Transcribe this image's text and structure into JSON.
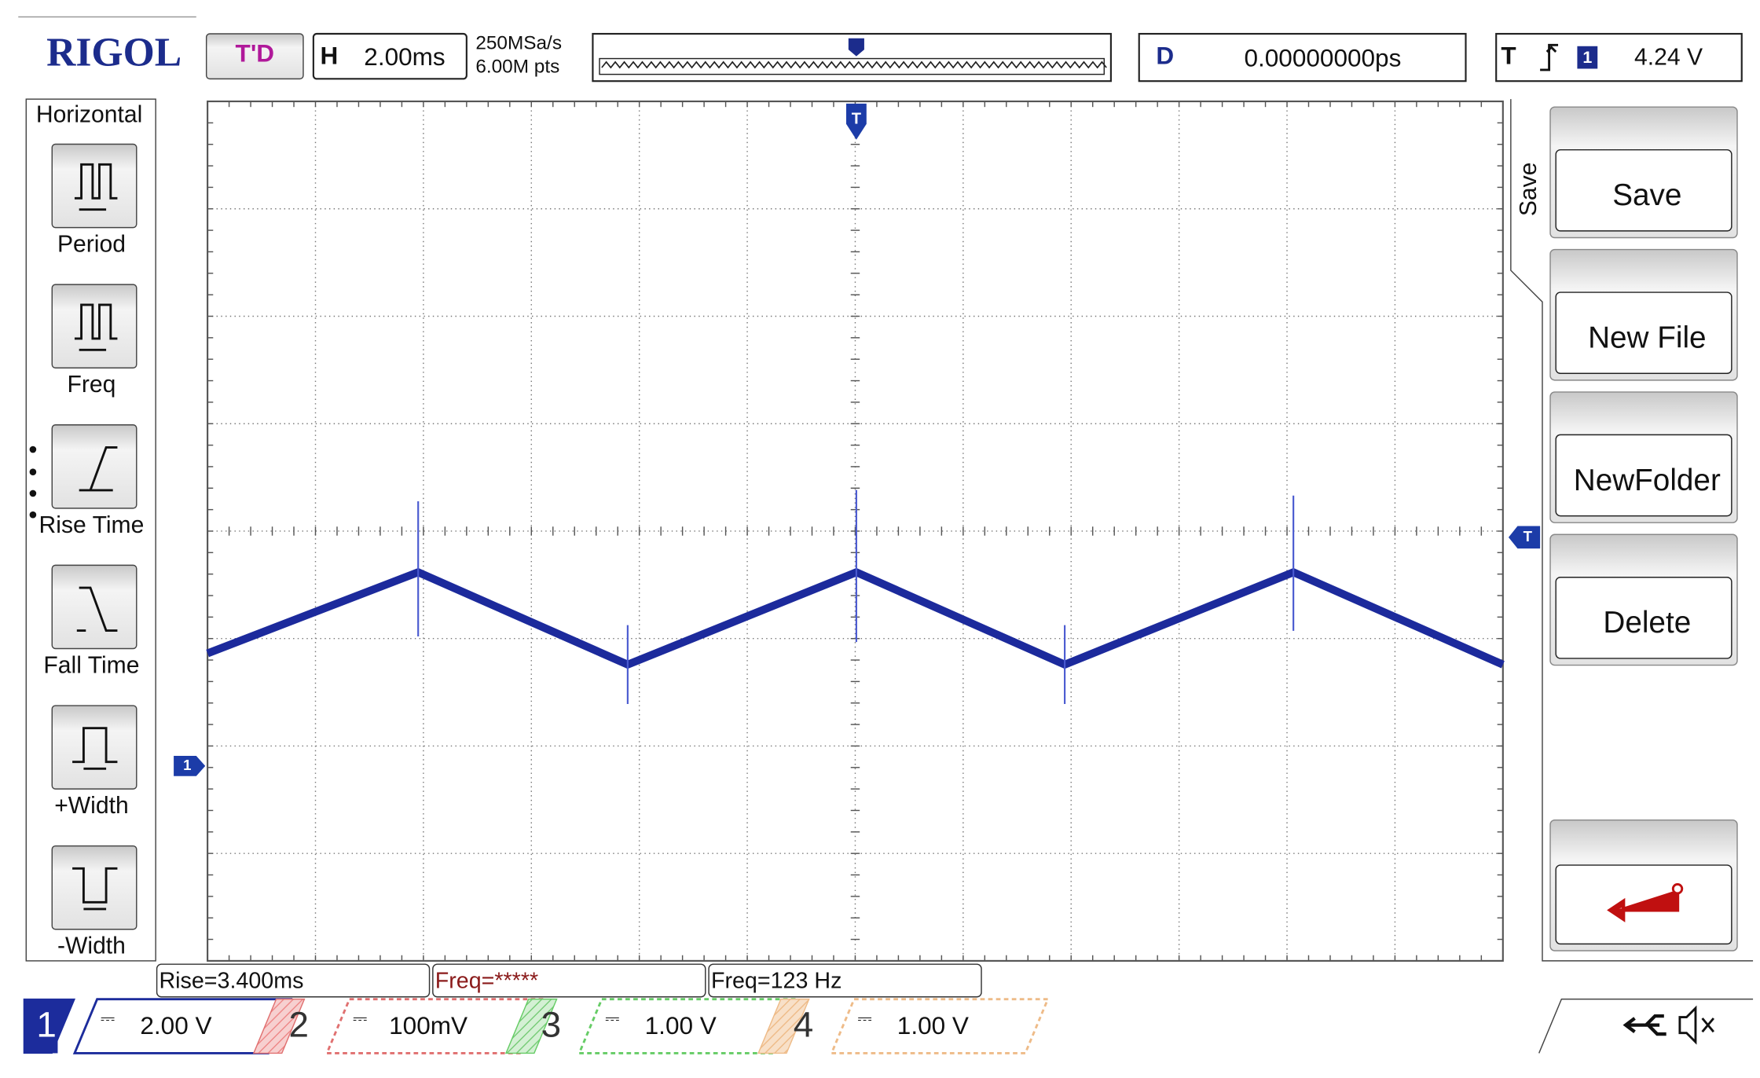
{
  "header": {
    "brand": "RIGOL",
    "mode": "T'D",
    "timebase_label": "H",
    "timebase": "2.00ms",
    "sample_rate": "250MSa/s",
    "memory_depth": "6.00M pts",
    "delay_label": "D",
    "delay": "0.00000000ps",
    "trigger_label": "T",
    "trigger_source": "1",
    "trigger_level": "4.24 V"
  },
  "left_menu": {
    "title": "Horizontal",
    "items": [
      "Period",
      "Freq",
      "Rise Time",
      "Fall Time",
      "+Width",
      "-Width"
    ]
  },
  "right_menu": {
    "title": "Save",
    "buttons": [
      "Save",
      "New File",
      "NewFolder",
      "Delete"
    ]
  },
  "markers": {
    "trigger": "T",
    "channel": "1"
  },
  "measurements": [
    "Rise=3.400ms",
    "Freq=*****",
    "Freq=123 Hz"
  ],
  "channels": [
    {
      "number": "1",
      "scale": "2.00 V"
    },
    {
      "number": "2",
      "scale": "100mV"
    },
    {
      "number": "3",
      "scale": "1.00 V"
    },
    {
      "number": "4",
      "scale": "1.00 V"
    }
  ]
}
